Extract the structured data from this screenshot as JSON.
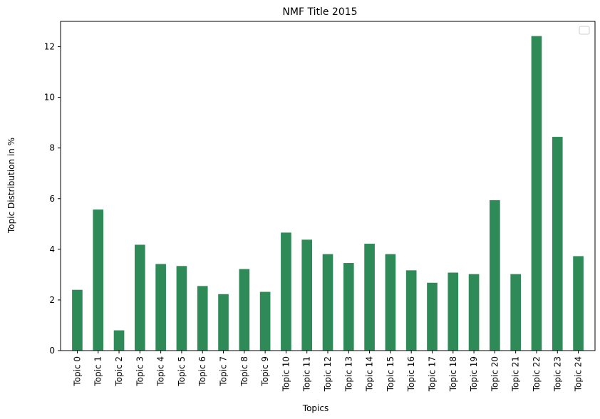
{
  "chart_data": {
    "type": "bar",
    "title": "NMF Title 2015",
    "xlabel": "Topics",
    "ylabel": "Topic Distribution in %",
    "categories": [
      "Topic 0",
      "Topic 1",
      "Topic 2",
      "Topic 3",
      "Topic 4",
      "Topic 5",
      "Topic 6",
      "Topic 7",
      "Topic 8",
      "Topic 9",
      "Topic 10",
      "Topic 11",
      "Topic 12",
      "Topic 13",
      "Topic 14",
      "Topic 15",
      "Topic 16",
      "Topic 17",
      "Topic 18",
      "Topic 19",
      "Topic 20",
      "Topic 21",
      "Topic 22",
      "Topic 23",
      "Topic 24"
    ],
    "values": [
      2.4,
      5.57,
      0.8,
      4.18,
      3.42,
      3.34,
      2.55,
      2.23,
      3.22,
      2.32,
      4.66,
      4.38,
      3.81,
      3.46,
      4.22,
      3.81,
      3.17,
      2.68,
      3.08,
      3.02,
      5.94,
      3.02,
      12.42,
      8.44,
      3.73
    ],
    "yticks": [
      0,
      2,
      4,
      6,
      8,
      10,
      12
    ],
    "ylim": [
      0,
      13
    ],
    "bar_color": "#2e8b57",
    "legend": "top-right",
    "grid": false
  }
}
